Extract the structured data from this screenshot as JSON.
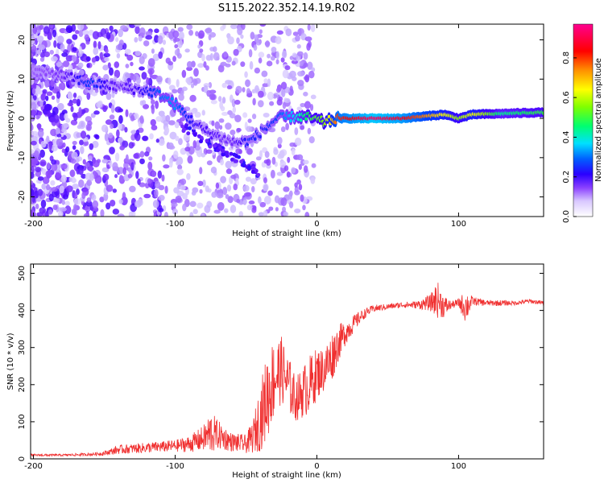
{
  "figure": {
    "title": "S115.2022.352.14.19.R02"
  },
  "colors": {
    "snr_line": "#f03030",
    "background": "#ffffff",
    "axes": "#000000"
  },
  "chart_data": [
    {
      "type": "heatmap",
      "xlabel": "Height of straight line (km)",
      "ylabel": "Frequency (Hz)",
      "xlim": [
        -202,
        160
      ],
      "ylim": [
        -25,
        24
      ],
      "xticks": [
        -200,
        -100,
        0,
        100
      ],
      "yticks": [
        -20,
        -10,
        0,
        10,
        20
      ],
      "colorbar": {
        "label": "Normalized spectral amplitude",
        "range": [
          0.0,
          0.97
        ],
        "ticks": [
          0.0,
          0.2,
          0.4,
          0.6,
          0.8
        ],
        "colormap": [
          "#ffffff",
          "#c8b4ff",
          "#8a40ff",
          "#4000ff",
          "#0040ff",
          "#00e0ff",
          "#00ff60",
          "#a0ff00",
          "#ffff00",
          "#ff8000",
          "#ff0000",
          "#ff0080"
        ]
      },
      "ridge": [
        {
          "x": -200,
          "y": 12,
          "a": 0.15
        },
        {
          "x": -180,
          "y": 11,
          "a": 0.2
        },
        {
          "x": -160,
          "y": 9,
          "a": 0.35
        },
        {
          "x": -140,
          "y": 8,
          "a": 0.2
        },
        {
          "x": -120,
          "y": 7,
          "a": 0.3
        },
        {
          "x": -110,
          "y": 6,
          "a": 0.38
        },
        {
          "x": -100,
          "y": 3.5,
          "a": 0.4
        },
        {
          "x": -90,
          "y": 0,
          "a": 0.3
        },
        {
          "x": -80,
          "y": -3,
          "a": 0.25
        },
        {
          "x": -60,
          "y": -6,
          "a": 0.2
        },
        {
          "x": -48,
          "y": -6,
          "a": 0.32
        },
        {
          "x": -38,
          "y": -3,
          "a": 0.3
        },
        {
          "x": -28,
          "y": 0,
          "a": 0.35
        },
        {
          "x": -15,
          "y": 0.5,
          "a": 0.45
        },
        {
          "x": -5,
          "y": 0.2,
          "a": 0.55
        },
        {
          "x": 5,
          "y": -1,
          "a": 0.6
        },
        {
          "x": 15,
          "y": 0,
          "a": 0.85
        },
        {
          "x": 40,
          "y": 0,
          "a": 0.95
        },
        {
          "x": 60,
          "y": 0,
          "a": 0.9
        },
        {
          "x": 75,
          "y": 0.5,
          "a": 0.8
        },
        {
          "x": 90,
          "y": 1,
          "a": 0.7
        },
        {
          "x": 100,
          "y": 0,
          "a": 0.6
        },
        {
          "x": 110,
          "y": 1,
          "a": 0.7
        },
        {
          "x": 130,
          "y": 1.2,
          "a": 0.5
        },
        {
          "x": 155,
          "y": 1.5,
          "a": 0.55
        }
      ]
    },
    {
      "type": "line",
      "xlabel": "Height of straight line (km)",
      "ylabel": "SNR (10 * v/v)",
      "xlim": [
        -202,
        160
      ],
      "ylim": [
        0,
        525
      ],
      "xticks": [
        -200,
        -100,
        0,
        100
      ],
      "yticks": [
        0,
        100,
        200,
        300,
        400,
        500
      ],
      "series": [
        {
          "x": [
            -202,
            -180,
            -160,
            -150,
            -140,
            -120,
            -100,
            -90,
            -80,
            -75,
            -70,
            -60,
            -50,
            -45,
            -40,
            -35,
            -30,
            -25,
            -20,
            -15,
            -10,
            -5,
            0,
            5,
            10,
            15,
            20,
            25,
            30,
            35,
            40,
            50,
            60,
            70,
            80,
            85,
            90,
            95,
            100,
            105,
            110,
            120,
            130,
            140,
            150,
            160
          ],
          "values": [
            10,
            10,
            12,
            15,
            25,
            30,
            35,
            40,
            55,
            70,
            65,
            45,
            40,
            60,
            110,
            170,
            220,
            240,
            200,
            160,
            180,
            200,
            230,
            240,
            270,
            310,
            340,
            360,
            380,
            395,
            405,
            410,
            415,
            415,
            420,
            430,
            410,
            415,
            420,
            410,
            425,
            420,
            420,
            420,
            425,
            420
          ],
          "noise": [
            3,
            3,
            4,
            6,
            12,
            14,
            16,
            22,
            35,
            60,
            40,
            25,
            25,
            45,
            90,
            120,
            110,
            90,
            80,
            60,
            70,
            80,
            70,
            60,
            70,
            50,
            35,
            25,
            18,
            12,
            10,
            8,
            8,
            10,
            22,
            50,
            30,
            10,
            12,
            45,
            12,
            8,
            8,
            6,
            6,
            6
          ]
        }
      ]
    }
  ]
}
